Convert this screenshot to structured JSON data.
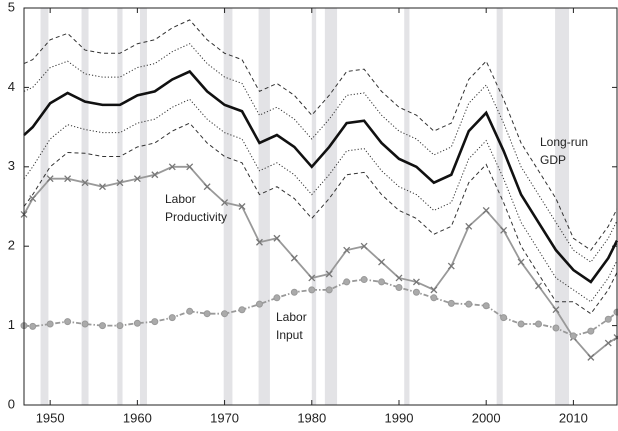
{
  "chart_data": {
    "type": "line",
    "x": [
      1947,
      1948,
      1950,
      1952,
      1954,
      1956,
      1958,
      1960,
      1962,
      1964,
      1966,
      1968,
      1970,
      1972,
      1974,
      1976,
      1978,
      1980,
      1982,
      1984,
      1986,
      1988,
      1990,
      1992,
      1994,
      1996,
      1998,
      2000,
      2002,
      2004,
      2006,
      2008,
      2010,
      2012,
      2014,
      2015
    ],
    "series": [
      {
        "color": "#333333",
        "dash": "dashed",
        "values": [
          4.3,
          4.35,
          4.6,
          4.68,
          4.47,
          4.43,
          4.43,
          4.55,
          4.6,
          4.75,
          4.85,
          4.6,
          4.43,
          4.35,
          3.95,
          4.05,
          3.9,
          3.65,
          3.9,
          4.2,
          4.23,
          3.95,
          3.75,
          3.65,
          3.45,
          3.55,
          4.1,
          4.33,
          3.85,
          3.3,
          2.95,
          2.6,
          2.1,
          1.95,
          2.25,
          2.47
        ]
      },
      {
        "color": "#333333",
        "dash": "dotted",
        "values": [
          3.95,
          4.0,
          4.25,
          4.33,
          4.17,
          4.13,
          4.13,
          4.25,
          4.3,
          4.45,
          4.55,
          4.3,
          4.13,
          4.05,
          3.65,
          3.75,
          3.6,
          3.35,
          3.6,
          3.9,
          3.93,
          3.65,
          3.45,
          3.35,
          3.15,
          3.25,
          3.8,
          4.03,
          3.55,
          3.0,
          2.65,
          2.3,
          1.95,
          1.8,
          2.1,
          2.32
        ]
      },
      {
        "name": "Long-run GDP",
        "color": "#111111",
        "dash": "solid",
        "values": [
          3.4,
          3.5,
          3.8,
          3.93,
          3.82,
          3.78,
          3.78,
          3.9,
          3.95,
          4.1,
          4.2,
          3.95,
          3.78,
          3.7,
          3.3,
          3.4,
          3.25,
          3.0,
          3.25,
          3.55,
          3.58,
          3.3,
          3.1,
          3.0,
          2.8,
          2.9,
          3.45,
          3.68,
          3.2,
          2.65,
          2.3,
          1.95,
          1.7,
          1.55,
          1.85,
          2.07
        ]
      },
      {
        "color": "#333333",
        "dash": "dotted",
        "values": [
          2.85,
          3.0,
          3.35,
          3.53,
          3.47,
          3.43,
          3.43,
          3.55,
          3.6,
          3.75,
          3.85,
          3.6,
          3.43,
          3.35,
          2.95,
          3.05,
          2.9,
          2.65,
          2.9,
          3.2,
          3.23,
          2.95,
          2.75,
          2.65,
          2.45,
          2.55,
          3.1,
          3.33,
          2.85,
          2.3,
          1.95,
          1.6,
          1.45,
          1.3,
          1.6,
          1.82
        ]
      },
      {
        "color": "#333333",
        "dash": "dashed",
        "values": [
          2.5,
          2.65,
          3.0,
          3.18,
          3.17,
          3.13,
          3.13,
          3.25,
          3.3,
          3.45,
          3.55,
          3.3,
          3.13,
          3.05,
          2.65,
          2.75,
          2.6,
          2.35,
          2.6,
          2.9,
          2.93,
          2.65,
          2.45,
          2.35,
          2.15,
          2.25,
          2.8,
          3.03,
          2.55,
          2.0,
          1.65,
          1.3,
          1.3,
          1.15,
          1.45,
          1.67
        ]
      },
      {
        "name": "Labor Productivity",
        "color": "#999999",
        "dash": "solid",
        "marker": "x",
        "values": [
          2.4,
          2.6,
          2.85,
          2.85,
          2.8,
          2.75,
          2.8,
          2.85,
          2.9,
          3.0,
          3.0,
          2.75,
          2.55,
          2.5,
          2.05,
          2.1,
          1.85,
          1.6,
          1.65,
          1.95,
          2.0,
          1.8,
          1.6,
          1.55,
          1.45,
          1.75,
          2.25,
          2.45,
          2.2,
          1.8,
          1.5,
          1.2,
          0.85,
          0.6,
          0.78,
          0.85
        ]
      },
      {
        "name": "Labor Input",
        "color": "#999999",
        "dash": "dashdot",
        "marker": "o",
        "values": [
          1.0,
          0.99,
          1.02,
          1.05,
          1.02,
          1.0,
          1.0,
          1.03,
          1.05,
          1.1,
          1.18,
          1.15,
          1.15,
          1.2,
          1.27,
          1.35,
          1.42,
          1.45,
          1.45,
          1.55,
          1.58,
          1.55,
          1.48,
          1.42,
          1.35,
          1.28,
          1.27,
          1.25,
          1.1,
          1.02,
          1.02,
          0.97,
          0.87,
          0.93,
          1.08,
          1.17
        ]
      }
    ],
    "recessions": [
      [
        1948.9,
        1949.8
      ],
      [
        1953.6,
        1954.4
      ],
      [
        1957.7,
        1958.3
      ],
      [
        1960.3,
        1961.1
      ],
      [
        1969.9,
        1970.9
      ],
      [
        1973.9,
        1975.2
      ],
      [
        1980.0,
        1980.5
      ],
      [
        1981.5,
        1982.9
      ],
      [
        1990.6,
        1991.2
      ],
      [
        2001.2,
        2001.9
      ],
      [
        2007.9,
        2009.5
      ]
    ],
    "recession_color": "#e3e3e6",
    "annotations": [
      [
        "Long-run",
        "GDP"
      ],
      [
        "Labor",
        "Productivity"
      ],
      [
        "Labor",
        "Input"
      ]
    ],
    "xlim": [
      1947,
      2015
    ],
    "xticks": [
      1950,
      1960,
      1970,
      1980,
      1990,
      2000,
      2010
    ],
    "ylim": [
      0,
      5
    ],
    "yticks": [
      0,
      1,
      2,
      3,
      4,
      5
    ]
  }
}
